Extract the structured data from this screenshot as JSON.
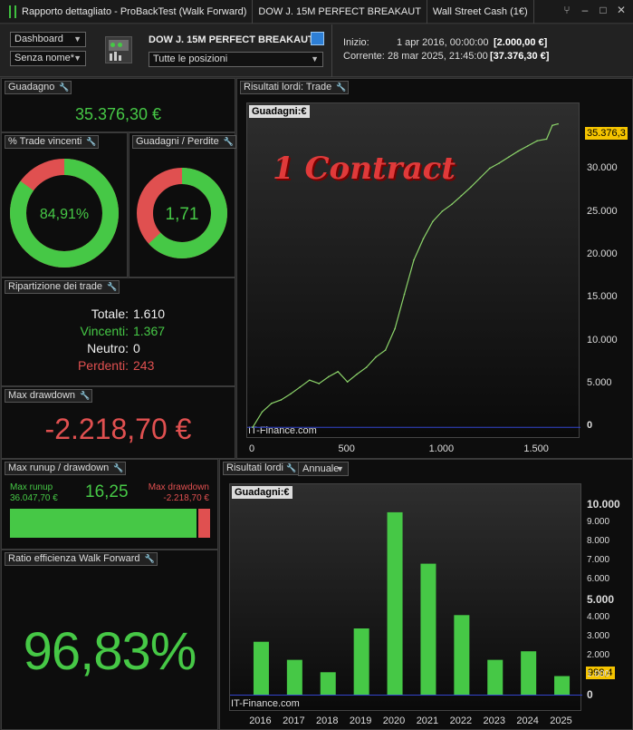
{
  "titlebar": {
    "title": "Rapporto dettagliato - ProBackTest (Walk Forward)",
    "instrument": "DOW J. 15M PERFECT BREAKAUT",
    "market": "Wall Street Cash (1€)"
  },
  "header": {
    "view_select": "Dashboard",
    "name_select": "Senza nome*",
    "system_name": "DOW J. 15M PERFECT BREAKAUT",
    "positions_select": "Tutte le posizioni",
    "start_label": "Inizio:",
    "start_date": "1 apr 2016, 00:00:00",
    "start_value": "[2.000,00 €]",
    "current_label": "Corrente:",
    "current_date": "28 mar 2025, 21:45:00",
    "current_value": "[37.376,30 €]"
  },
  "gain": {
    "title": "Guadagno",
    "value": "35.376,30 €"
  },
  "win_pct": {
    "title": "% Trade vincenti",
    "value": "84,91%",
    "fraction": 0.8491
  },
  "gain_loss": {
    "title": "Guadagni / Perdite",
    "value": "1,71",
    "fraction": 0.631
  },
  "breakdown": {
    "title": "Ripartizione dei trade",
    "total_label": "Totale:",
    "total": "1.610",
    "win_label": "Vincenti:",
    "win": "1.367",
    "neutral_label": "Neutro:",
    "neutral": "0",
    "loss_label": "Perdenti:",
    "loss": "243"
  },
  "max_drawdown": {
    "title": "Max drawdown",
    "value": "-2.218,70 €"
  },
  "runup": {
    "title": "Max runup / drawdown",
    "runup_label": "Max runup",
    "runup_value": "36.047,70 €",
    "ratio": "16,25",
    "dd_label": "Max drawdown",
    "dd_value": "-2.218,70 €",
    "runup_fraction": 0.942
  },
  "wf_ratio": {
    "title": "Ratio efficienza Walk Forward",
    "value": "96,83%"
  },
  "equity_chart": {
    "panel_title": "Risultati lordi: Trade",
    "legend": "Guadagni:",
    "currency": "€",
    "overlay_text": "1 Contract",
    "watermark": "IT-Finance.com",
    "last_value_label": "35.376,3",
    "chart_data": {
      "type": "line",
      "xlabel": "",
      "ylabel": "",
      "xlim": [
        0,
        1700
      ],
      "ylim": [
        -500,
        36500
      ],
      "xticks": [
        "0",
        "500",
        "1.000",
        "1.500"
      ],
      "yticks": [
        "0",
        "5.000",
        "10.000",
        "15.000",
        "20.000",
        "25.000",
        "30.000"
      ],
      "x": [
        0,
        50,
        100,
        150,
        200,
        250,
        300,
        350,
        400,
        450,
        500,
        550,
        600,
        650,
        700,
        750,
        800,
        850,
        900,
        950,
        1000,
        1050,
        1100,
        1150,
        1200,
        1250,
        1300,
        1350,
        1400,
        1450,
        1500,
        1550,
        1580,
        1610
      ],
      "values": [
        0,
        1800,
        2800,
        3200,
        3900,
        4700,
        5500,
        5100,
        5900,
        6500,
        5300,
        6200,
        7000,
        8200,
        9000,
        11500,
        15500,
        19500,
        22000,
        24000,
        25200,
        26000,
        27000,
        28000,
        29100,
        30200,
        30800,
        31500,
        32200,
        32800,
        33400,
        33600,
        35200,
        35376
      ]
    }
  },
  "annual_chart": {
    "panel_title": "Risultati lordi",
    "period_select": "Annuale",
    "legend": "Guadagni:",
    "currency": "€",
    "watermark": "IT-Finance.com",
    "last_value_label": "998,4",
    "chart_data": {
      "type": "bar",
      "xlabel": "",
      "ylabel": "",
      "ylim": [
        -500,
        10500
      ],
      "yticks": [
        "0",
        "1.000",
        "2.000",
        "3.000",
        "4.000",
        "5.000",
        "6.000",
        "7.000",
        "8.000",
        "9.000",
        "10.000"
      ],
      "categories": [
        "2016",
        "2017",
        "2018",
        "2019",
        "2020",
        "2021",
        "2022",
        "2023",
        "2024",
        "2025"
      ],
      "values": [
        2800,
        1850,
        1200,
        3500,
        9600,
        6900,
        4200,
        1850,
        2300,
        998.4
      ]
    }
  },
  "colors": {
    "accent_green": "#46c846",
    "loss_red": "#e05050",
    "line_green": "#8cd46a",
    "price_tag": "#f5c400"
  }
}
